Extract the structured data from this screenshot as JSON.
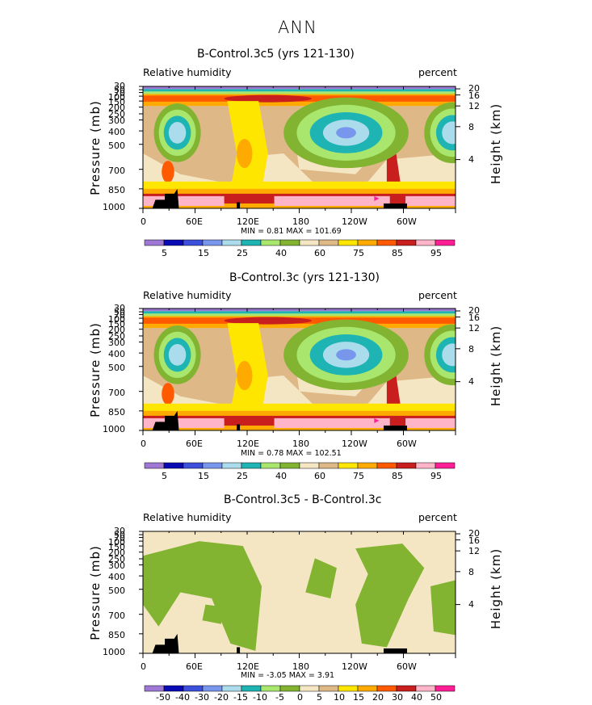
{
  "figure": {
    "title": "ANN"
  },
  "chart_data": [
    {
      "type": "heatmap",
      "title": "B-Control.3c5 (yrs 121-130)",
      "left_label": "Relative humidity",
      "right_label": "percent",
      "ylabel_left": "Pressure (mb)",
      "ylabel_right": "Height (km)",
      "x_ticks": [
        "0",
        "60E",
        "120E",
        "180",
        "120W",
        "60W"
      ],
      "y_ticks": [
        "30",
        "50",
        "70",
        "100",
        "150",
        "200",
        "250",
        "300",
        "400",
        "500",
        "700",
        "850",
        "1000"
      ],
      "height_ticks": [
        "20",
        "16",
        "12",
        "8",
        "4"
      ],
      "min_text": "MIN =     0.81   MAX =  101.69",
      "min": 0.81,
      "max": 101.69,
      "levels": [
        "5",
        "15",
        "25",
        "40",
        "60",
        "75",
        "85",
        "95"
      ],
      "colors": [
        "#9e78d4",
        "#0a0ab4",
        "#3c50dc",
        "#7896eb",
        "#aadcec",
        "#1eb4b4",
        "#a8e66e",
        "#82b432",
        "#f5e6c3",
        "#deb887",
        "#ffe600",
        "#ffaa00",
        "#ff5a00",
        "#c81e1e",
        "#ffb4c8",
        "#ff1e96"
      ]
    },
    {
      "type": "heatmap",
      "title": "B-Control.3c (yrs 121-130)",
      "left_label": "Relative humidity",
      "right_label": "percent",
      "ylabel_left": "Pressure (mb)",
      "ylabel_right": "Height (km)",
      "x_ticks": [
        "0",
        "60E",
        "120E",
        "180",
        "120W",
        "60W"
      ],
      "y_ticks": [
        "30",
        "50",
        "70",
        "100",
        "150",
        "200",
        "250",
        "300",
        "400",
        "500",
        "700",
        "850",
        "1000"
      ],
      "height_ticks": [
        "20",
        "16",
        "12",
        "8",
        "4"
      ],
      "min_text": "MIN =     0.78   MAX =  102.51",
      "min": 0.78,
      "max": 102.51,
      "levels": [
        "5",
        "15",
        "25",
        "40",
        "60",
        "75",
        "85",
        "95"
      ],
      "colors": [
        "#9e78d4",
        "#0a0ab4",
        "#3c50dc",
        "#7896eb",
        "#aadcec",
        "#1eb4b4",
        "#a8e66e",
        "#82b432",
        "#f5e6c3",
        "#deb887",
        "#ffe600",
        "#ffaa00",
        "#ff5a00",
        "#c81e1e",
        "#ffb4c8",
        "#ff1e96"
      ]
    },
    {
      "type": "heatmap",
      "title": "B-Control.3c5 - B-Control.3c",
      "left_label": "Relative humidity",
      "right_label": "percent",
      "ylabel_left": "Pressure (mb)",
      "ylabel_right": "Height (km)",
      "x_ticks": [
        "0",
        "60E",
        "120E",
        "180",
        "120W",
        "60W"
      ],
      "y_ticks": [
        "30",
        "50",
        "70",
        "100",
        "150",
        "200",
        "250",
        "300",
        "400",
        "500",
        "700",
        "850",
        "1000"
      ],
      "height_ticks": [
        "20",
        "16",
        "12",
        "8",
        "4"
      ],
      "min_text": "MIN =    -3.05   MAX =     3.91",
      "min": -3.05,
      "max": 3.91,
      "levels": [
        "-50",
        "-40",
        "-30",
        "-20",
        "-15",
        "-10",
        "-5",
        "0",
        "5",
        "10",
        "15",
        "20",
        "30",
        "40",
        "50"
      ],
      "colors": [
        "#9e78d4",
        "#0a0ab4",
        "#3c50dc",
        "#7896eb",
        "#aadcec",
        "#1eb4b4",
        "#a8e66e",
        "#82b432",
        "#f5e6c3",
        "#deb887",
        "#ffe600",
        "#ffaa00",
        "#ff5a00",
        "#c81e1e",
        "#ffb4c8",
        "#ff1e96"
      ]
    }
  ]
}
